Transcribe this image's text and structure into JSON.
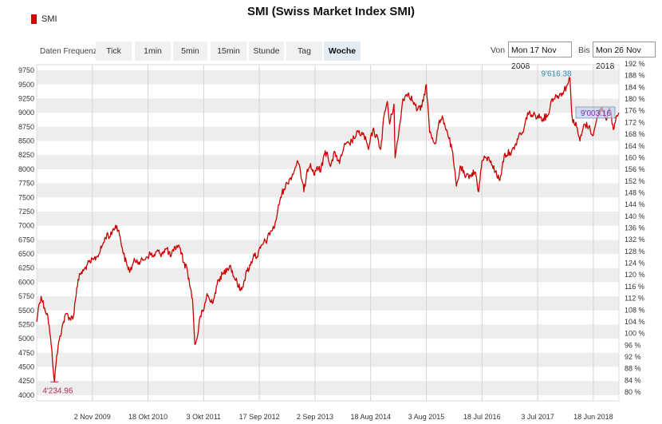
{
  "title": "SMI (Swiss Market Index SMI)",
  "legend": {
    "label": "SMI",
    "color": "#cc0000"
  },
  "controls": {
    "frequency_label": "Daten Frequenz",
    "frequency_options": [
      "Tick",
      "1min",
      "5min",
      "15min",
      "Stunde",
      "Tag",
      "Woche"
    ],
    "selected_frequency": "Woche",
    "from_label": "Von",
    "from_value": "Mon 17 Nov 2008",
    "to_label": "Bis",
    "to_value": "Mon 26 Nov 2018"
  },
  "chart_data": {
    "type": "line",
    "title": "SMI (Swiss Market Index SMI)",
    "series": [
      {
        "name": "SMI",
        "color": "#cc0000"
      }
    ],
    "x_range": [
      "2008-11-17",
      "2018-11-26"
    ],
    "x_ticks": [
      "2 Nov 2009",
      "18 Okt 2010",
      "3 Okt 2011",
      "17 Sep 2012",
      "2 Sep 2013",
      "18 Aug 2014",
      "3 Aug 2015",
      "18 Jul 2016",
      "3 Jul 2017",
      "18 Jun 2018"
    ],
    "x_tick_dates": [
      "2009-11-02",
      "2010-10-18",
      "2011-10-03",
      "2012-09-17",
      "2013-09-02",
      "2014-08-18",
      "2015-08-03",
      "2016-07-18",
      "2017-07-03",
      "2018-06-18"
    ],
    "y_left": {
      "min": 3900,
      "max": 9850,
      "ticks": [
        4000,
        4250,
        4500,
        4750,
        5000,
        5250,
        5500,
        5750,
        6000,
        6250,
        6500,
        6750,
        7000,
        7250,
        7500,
        7750,
        8000,
        8250,
        8500,
        8750,
        9000,
        9250,
        9500,
        9750
      ]
    },
    "y_right": {
      "unit": "%",
      "ticks": [
        "80 %",
        "84 %",
        "88 %",
        "92 %",
        "96 %",
        "100 %",
        "104 %",
        "108 %",
        "112 %",
        "116 %",
        "120 %",
        "124 %",
        "128 %",
        "132 %",
        "136 %",
        "140 %",
        "144 %",
        "148 %",
        "152 %",
        "156 %",
        "160 %",
        "164 %",
        "168 %",
        "172 %",
        "176 %",
        "180 %",
        "184 %",
        "188 %",
        "192 %"
      ]
    },
    "grid": "horizontal bands and vertical lines",
    "points": [
      [
        "2008-11-17",
        5300
      ],
      [
        "2008-12-01",
        5600
      ],
      [
        "2008-12-15",
        5750
      ],
      [
        "2009-01-05",
        5550
      ],
      [
        "2009-01-26",
        5400
      ],
      [
        "2009-02-16",
        4900
      ],
      [
        "2009-03-09",
        4235
      ],
      [
        "2009-03-23",
        4700
      ],
      [
        "2009-04-13",
        5050
      ],
      [
        "2009-05-04",
        5300
      ],
      [
        "2009-05-25",
        5450
      ],
      [
        "2009-06-15",
        5350
      ],
      [
        "2009-07-06",
        5400
      ],
      [
        "2009-07-27",
        5900
      ],
      [
        "2009-08-17",
        6150
      ],
      [
        "2009-09-07",
        6200
      ],
      [
        "2009-09-28",
        6300
      ],
      [
        "2009-10-19",
        6350
      ],
      [
        "2009-11-09",
        6400
      ],
      [
        "2009-11-30",
        6450
      ],
      [
        "2009-12-21",
        6550
      ],
      [
        "2010-01-11",
        6700
      ],
      [
        "2010-02-01",
        6850
      ],
      [
        "2010-02-22",
        6800
      ],
      [
        "2010-03-15",
        6950
      ],
      [
        "2010-04-05",
        7000
      ],
      [
        "2010-04-26",
        6800
      ],
      [
        "2010-05-17",
        6500
      ],
      [
        "2010-06-07",
        6300
      ],
      [
        "2010-06-28",
        6200
      ],
      [
        "2010-07-19",
        6350
      ],
      [
        "2010-08-09",
        6400
      ],
      [
        "2010-08-30",
        6350
      ],
      [
        "2010-09-20",
        6400
      ],
      [
        "2010-10-11",
        6450
      ],
      [
        "2010-11-01",
        6500
      ],
      [
        "2010-11-22",
        6450
      ],
      [
        "2010-12-13",
        6550
      ],
      [
        "2011-01-03",
        6500
      ],
      [
        "2011-01-24",
        6550
      ],
      [
        "2011-02-14",
        6600
      ],
      [
        "2011-03-07",
        6450
      ],
      [
        "2011-03-28",
        6550
      ],
      [
        "2011-04-18",
        6650
      ],
      [
        "2011-05-09",
        6600
      ],
      [
        "2011-05-30",
        6350
      ],
      [
        "2011-06-20",
        6250
      ],
      [
        "2011-07-11",
        5900
      ],
      [
        "2011-07-25",
        5700
      ],
      [
        "2011-08-08",
        4900
      ],
      [
        "2011-08-22",
        5000
      ],
      [
        "2011-09-12",
        5400
      ],
      [
        "2011-10-03",
        5500
      ],
      [
        "2011-10-24",
        5800
      ],
      [
        "2011-11-14",
        5650
      ],
      [
        "2011-12-05",
        5700
      ],
      [
        "2011-12-26",
        5950
      ],
      [
        "2012-01-16",
        6100
      ],
      [
        "2012-02-06",
        6150
      ],
      [
        "2012-02-27",
        6250
      ],
      [
        "2012-03-19",
        6300
      ],
      [
        "2012-04-09",
        6100
      ],
      [
        "2012-04-30",
        6000
      ],
      [
        "2012-05-21",
        5850
      ],
      [
        "2012-06-11",
        6000
      ],
      [
        "2012-07-02",
        6200
      ],
      [
        "2012-07-23",
        6300
      ],
      [
        "2012-08-13",
        6500
      ],
      [
        "2012-09-03",
        6450
      ],
      [
        "2012-09-24",
        6600
      ],
      [
        "2012-10-15",
        6700
      ],
      [
        "2012-11-05",
        6750
      ],
      [
        "2012-11-26",
        6900
      ],
      [
        "2012-12-17",
        6950
      ],
      [
        "2013-01-07",
        7200
      ],
      [
        "2013-01-28",
        7500
      ],
      [
        "2013-02-18",
        7650
      ],
      [
        "2013-03-11",
        7750
      ],
      [
        "2013-04-01",
        7850
      ],
      [
        "2013-04-22",
        7950
      ],
      [
        "2013-05-13",
        8150
      ],
      [
        "2013-06-03",
        7950
      ],
      [
        "2013-06-24",
        7600
      ],
      [
        "2013-07-15",
        8000
      ],
      [
        "2013-08-05",
        8100
      ],
      [
        "2013-08-26",
        7900
      ],
      [
        "2013-09-16",
        8050
      ],
      [
        "2013-10-07",
        7950
      ],
      [
        "2013-10-28",
        8250
      ],
      [
        "2013-11-18",
        8300
      ],
      [
        "2013-12-09",
        8050
      ],
      [
        "2014-01-06",
        8300
      ],
      [
        "2014-02-03",
        8100
      ],
      [
        "2014-03-03",
        8400
      ],
      [
        "2014-04-07",
        8450
      ],
      [
        "2014-05-05",
        8550
      ],
      [
        "2014-06-02",
        8650
      ],
      [
        "2014-07-07",
        8600
      ],
      [
        "2014-08-04",
        8350
      ],
      [
        "2014-09-01",
        8700
      ],
      [
        "2014-10-06",
        8500
      ],
      [
        "2014-10-20",
        8350
      ],
      [
        "2014-11-10",
        8950
      ],
      [
        "2014-12-01",
        9200
      ],
      [
        "2014-12-15",
        8800
      ],
      [
        "2015-01-12",
        9150
      ],
      [
        "2015-01-19",
        8200
      ],
      [
        "2015-02-09",
        8600
      ],
      [
        "2015-03-09",
        9250
      ],
      [
        "2015-04-13",
        9350
      ],
      [
        "2015-05-11",
        9200
      ],
      [
        "2015-06-08",
        9050
      ],
      [
        "2015-07-06",
        9100
      ],
      [
        "2015-08-03",
        9500
      ],
      [
        "2015-08-24",
        8650
      ],
      [
        "2015-09-28",
        8450
      ],
      [
        "2015-10-19",
        8800
      ],
      [
        "2015-11-16",
        8900
      ],
      [
        "2015-12-14",
        8650
      ],
      [
        "2016-01-11",
        8350
      ],
      [
        "2016-02-08",
        7700
      ],
      [
        "2016-03-07",
        8050
      ],
      [
        "2016-04-04",
        7850
      ],
      [
        "2016-05-02",
        7900
      ],
      [
        "2016-06-06",
        7950
      ],
      [
        "2016-06-27",
        7600
      ],
      [
        "2016-07-18",
        8150
      ],
      [
        "2016-08-15",
        8200
      ],
      [
        "2016-09-12",
        8150
      ],
      [
        "2016-10-10",
        7950
      ],
      [
        "2016-11-07",
        7800
      ],
      [
        "2016-12-05",
        8250
      ],
      [
        "2017-01-09",
        8300
      ],
      [
        "2017-02-06",
        8350
      ],
      [
        "2017-03-06",
        8600
      ],
      [
        "2017-04-03",
        8650
      ],
      [
        "2017-05-01",
        9000
      ],
      [
        "2017-06-05",
        8950
      ],
      [
        "2017-07-03",
        8950
      ],
      [
        "2017-08-07",
        8900
      ],
      [
        "2017-09-04",
        8950
      ],
      [
        "2017-10-02",
        9250
      ],
      [
        "2017-11-06",
        9300
      ],
      [
        "2017-12-04",
        9350
      ],
      [
        "2018-01-08",
        9500
      ],
      [
        "2018-01-22",
        9616
      ],
      [
        "2018-02-05",
        8900
      ],
      [
        "2018-03-05",
        8750
      ],
      [
        "2018-03-26",
        8500
      ],
      [
        "2018-04-23",
        8800
      ],
      [
        "2018-05-21",
        8750
      ],
      [
        "2018-06-18",
        8600
      ],
      [
        "2018-07-16",
        8950
      ],
      [
        "2018-08-13",
        9100
      ],
      [
        "2018-09-03",
        8900
      ],
      [
        "2018-10-01",
        9050
      ],
      [
        "2018-10-22",
        8700
      ],
      [
        "2018-11-12",
        8950
      ],
      [
        "2018-11-26",
        9000
      ]
    ],
    "annotations": [
      {
        "label": "4'234.96",
        "date": "2009-03-09",
        "value": 4234.96,
        "kind": "low"
      },
      {
        "label": "9'616.38",
        "date": "2018-01-22",
        "value": 9616.38,
        "kind": "high"
      },
      {
        "label": "9'003.16",
        "date": "2018-11-26",
        "value": 9003.16,
        "kind": "last"
      }
    ]
  }
}
